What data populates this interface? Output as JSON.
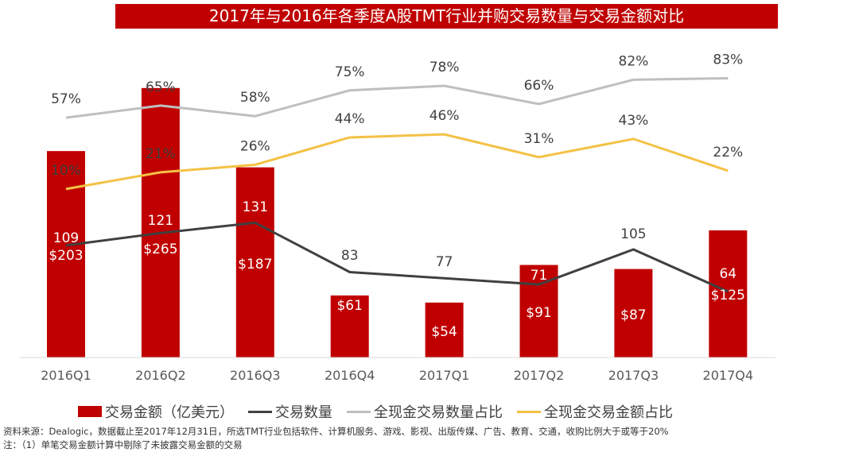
{
  "title": "2017年与2016年各季度A股TMT行业并购交易数量与交易金额对比",
  "chart_data": {
    "type": "bar+line",
    "title": "2017年与2016年各季度A股TMT行业并购交易数量与交易金额对比",
    "categories": [
      "2016Q1",
      "2016Q2",
      "2016Q3",
      "2016Q4",
      "2017Q1",
      "2017Q2",
      "2017Q3",
      "2017Q4"
    ],
    "series": [
      {
        "name": "交易金额（亿美元）",
        "type": "bar",
        "color": "#C00000",
        "values": [
          203,
          265,
          187,
          61,
          54,
          91,
          87,
          125
        ],
        "labels": [
          "$203",
          "$265",
          "$187",
          "$61",
          "$54",
          "$91",
          "$87",
          "$125"
        ]
      },
      {
        "name": "交易数量",
        "type": "line",
        "color": "#404040",
        "values": [
          109,
          121,
          131,
          83,
          77,
          71,
          105,
          64
        ],
        "labels": [
          "109",
          "121",
          "131",
          "83",
          "77",
          "71",
          "105",
          "64"
        ]
      },
      {
        "name": "全现金交易数量占比",
        "type": "line",
        "color": "#BFBFBF",
        "values": [
          57,
          65,
          58,
          75,
          78,
          66,
          82,
          83
        ],
        "labels": [
          "57%",
          "65%",
          "58%",
          "75%",
          "78%",
          "66%",
          "82%",
          "83%"
        ]
      },
      {
        "name": "全现金交易金额占比",
        "type": "line",
        "color": "#F4C145",
        "values": [
          10,
          21,
          26,
          44,
          46,
          31,
          43,
          22
        ],
        "labels": [
          "10%",
          "21%",
          "26%",
          "44%",
          "46%",
          "31%",
          "43%",
          "22%"
        ]
      }
    ],
    "legend_position": "bottom",
    "grid": false
  },
  "footer": {
    "source": "资料来源：Dealogic，数据截止至2017年12月31日，所选TMT行业包括软件、计算机服务、游戏、影视、出版传媒、广告、教育、交通，收购比例大于或等于20%",
    "note": "注：（1）单笔交易金额计算中剔除了未披露交易金额的交易"
  }
}
